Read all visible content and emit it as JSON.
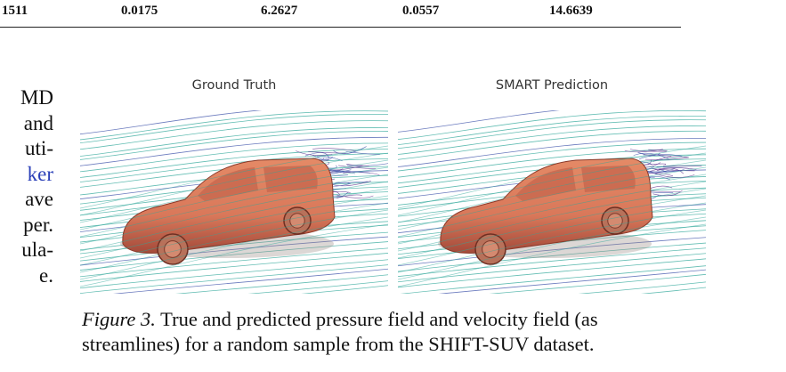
{
  "table": {
    "row": [
      "1511",
      "0.0175",
      "6.2627",
      "0.0557",
      "14.6639"
    ]
  },
  "body_text": {
    "lines": [
      "MD",
      "and",
      "uti-",
      "ker",
      "ave",
      "per.",
      "ula-",
      "e."
    ],
    "link_line_index": 3
  },
  "figure": {
    "panels": [
      {
        "title": "Ground Truth"
      },
      {
        "title": "SMART Prediction"
      }
    ],
    "caption_label": "Figure 3.",
    "caption_line1": " True and predicted pressure field and velocity field (as",
    "caption_line2": "streamlines) for a random sample from the SHIFT-SUV dataset."
  },
  "colors": {
    "car_body": "#d9785a",
    "car_shadow": "#a44a3a",
    "streamline_teal": "#2fa79a",
    "streamline_blue": "#3a4fa8",
    "streamline_purple": "#5a2a8a",
    "link": "#2a3fb8"
  }
}
